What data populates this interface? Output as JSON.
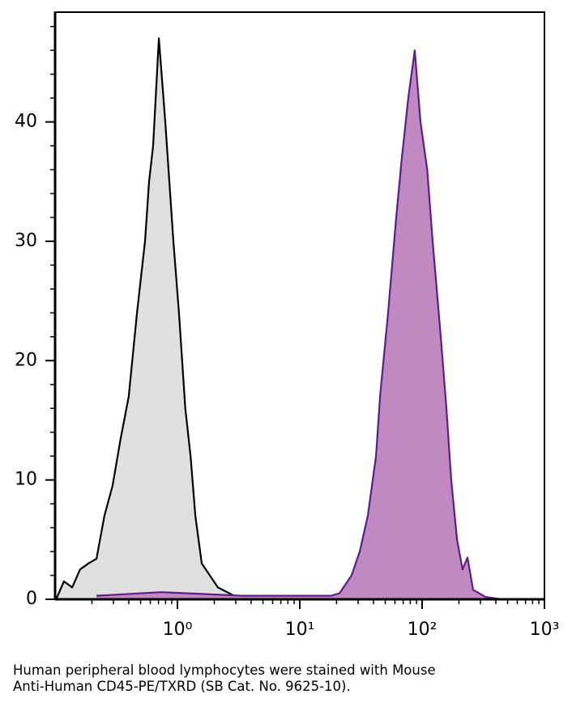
{
  "chart_data": {
    "type": "histogram-overlay",
    "xscale": "log",
    "xlim": [
      0.1,
      1000
    ],
    "ylim": [
      0,
      49.2
    ],
    "xticks": [
      {
        "value": 1,
        "label": "10⁰"
      },
      {
        "value": 10,
        "label": "10¹"
      },
      {
        "value": 100,
        "label": "10²"
      },
      {
        "value": 1000,
        "label": "10³"
      }
    ],
    "x_minor_ticks": [
      0.2,
      0.3,
      0.4,
      0.5,
      0.6,
      0.7,
      0.8,
      0.9,
      2,
      3,
      4,
      5,
      6,
      7,
      8,
      9,
      20,
      30,
      40,
      50,
      60,
      70,
      80,
      90,
      200,
      300,
      400,
      500,
      600,
      700,
      800,
      900
    ],
    "yticks": [
      0,
      10,
      20,
      30,
      40
    ],
    "y_minor_ticks": [
      2,
      4,
      6,
      8,
      12,
      14,
      16,
      18,
      22,
      24,
      26,
      28,
      32,
      34,
      36,
      38,
      42,
      44,
      46,
      48
    ],
    "series": [
      {
        "color": "#000000",
        "fill": "#e0e0e0",
        "x": [
          0.102,
          0.118,
          0.138,
          0.16,
          0.187,
          0.218,
          0.253,
          0.295,
          0.344,
          0.4,
          0.467,
          0.543,
          0.586,
          0.633,
          0.705,
          0.796,
          0.859,
          0.927,
          1.03,
          1.16,
          1.28,
          1.4,
          1.58,
          1.84,
          2.14,
          2.91,
          4.59,
          8.45
        ],
        "values": [
          0,
          1.5,
          1,
          2.5,
          3,
          3.4,
          7,
          9.5,
          13.5,
          17,
          24,
          30,
          35,
          38,
          47,
          40,
          35,
          30,
          24,
          16,
          12,
          7,
          3,
          2,
          1,
          0.3,
          0,
          0
        ]
      },
      {
        "color": "#5b1e86",
        "fill": "#c189c2",
        "x": [
          0.218,
          0.737,
          3.39,
          11.4,
          18.1,
          21.1,
          26.5,
          30.9,
          36,
          42,
          45.3,
          52.7,
          61.4,
          68.3,
          77.1,
          87.1,
          97,
          110,
          122,
          142,
          158,
          173,
          193,
          214,
          235,
          261,
          329,
          446
        ],
        "values": [
          0.3,
          0.6,
          0.3,
          0.3,
          0.3,
          0.5,
          2,
          4,
          7,
          12,
          17,
          24,
          32,
          37,
          42,
          46,
          40,
          36,
          30,
          22,
          16,
          10,
          5,
          2.5,
          3.5,
          0.8,
          0.2,
          0
        ]
      }
    ]
  },
  "caption": [
    "Human peripheral blood lymphocytes were stained with Mouse",
    "Anti-Human CD45-PE/TXRD (SB Cat. No. 9625-10)."
  ]
}
